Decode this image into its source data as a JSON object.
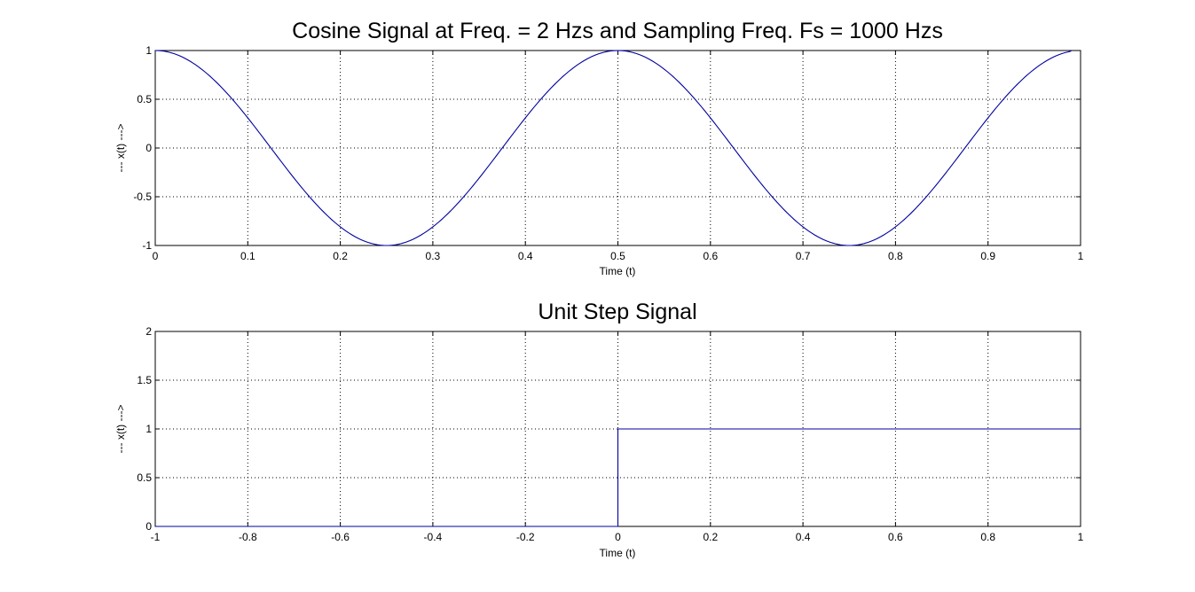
{
  "colors": {
    "line": "#0000a0",
    "axis": "#000000",
    "background": "#ffffff"
  },
  "chart_data": [
    {
      "type": "line",
      "title": "Cosine Signal at Freq. = 2 Hzs and Sampling Freq. Fs = 1000 Hzs",
      "xlabel": "Time (t)",
      "ylabel": "--- x(t) --->",
      "xlim": [
        0,
        1
      ],
      "ylim": [
        -1,
        1
      ],
      "xticks": [
        0,
        0.1,
        0.2,
        0.3,
        0.4,
        0.5,
        0.6,
        0.7,
        0.8,
        0.9,
        1
      ],
      "xtick_labels": [
        "0",
        "0.1",
        "0.2",
        "0.3",
        "0.4",
        "0.5",
        "0.6",
        "0.7",
        "0.8",
        "0.9",
        "1"
      ],
      "yticks": [
        -1,
        -0.5,
        0,
        0.5,
        1
      ],
      "ytick_labels": [
        "-1",
        "-0.5",
        "0",
        "0.5",
        "1"
      ],
      "grid": true,
      "series": [
        {
          "x": [
            0,
            0.025,
            0.05,
            0.075,
            0.1,
            0.125,
            0.15,
            0.175,
            0.2,
            0.225,
            0.25,
            0.275,
            0.3,
            0.325,
            0.35,
            0.375,
            0.4,
            0.425,
            0.45,
            0.475,
            0.5,
            0.525,
            0.55,
            0.575,
            0.6,
            0.625,
            0.65,
            0.675,
            0.7,
            0.725,
            0.75,
            0.775,
            0.8,
            0.825,
            0.85,
            0.875,
            0.9,
            0.925,
            0.95,
            0.975,
            0.99
          ],
          "y": [
            1,
            0.951,
            0.809,
            0.588,
            0.309,
            0,
            -0.309,
            -0.588,
            -0.809,
            -0.951,
            -1,
            -0.951,
            -0.809,
            -0.588,
            -0.309,
            0,
            0.309,
            0.588,
            0.809,
            0.951,
            1,
            0.951,
            0.809,
            0.588,
            0.309,
            0,
            -0.309,
            -0.588,
            -0.809,
            -0.951,
            -1,
            -0.951,
            -0.809,
            -0.588,
            -0.309,
            0,
            0.309,
            0.588,
            0.809,
            0.951,
            0.998
          ]
        }
      ]
    },
    {
      "type": "line",
      "title": "Unit Step Signal",
      "xlabel": "Time (t)",
      "ylabel": "--- x(t) --->",
      "xlim": [
        -1,
        1
      ],
      "ylim": [
        0,
        2
      ],
      "xticks": [
        -1,
        -0.8,
        -0.6,
        -0.4,
        -0.2,
        0,
        0.2,
        0.4,
        0.6,
        0.8,
        1
      ],
      "xtick_labels": [
        "-1",
        "-0.8",
        "-0.6",
        "-0.4",
        "-0.2",
        "0",
        "0.2",
        "0.4",
        "0.6",
        "0.8",
        "1"
      ],
      "yticks": [
        0,
        0.5,
        1,
        1.5,
        2
      ],
      "ytick_labels": [
        "0",
        "0.5",
        "1",
        "1.5",
        "2"
      ],
      "grid": true,
      "series": [
        {
          "x": [
            -1,
            0,
            0,
            1
          ],
          "y": [
            0,
            0,
            1,
            1
          ]
        }
      ]
    }
  ]
}
